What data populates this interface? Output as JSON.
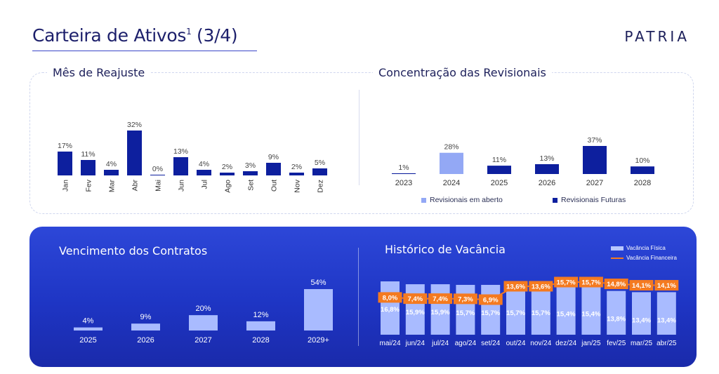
{
  "header": {
    "title": "Carteira de Ativos",
    "title_sup": "1",
    "title_suffix": " (3/4)",
    "logo": "PATRIA"
  },
  "colors": {
    "navy": "#0d1f9e",
    "light_blue": "#93a8f5",
    "orange": "#f47a20",
    "panel_blue": "#2440d0"
  },
  "chart_data": [
    {
      "id": "mes-reajuste",
      "type": "bar",
      "title": "Mês de Reajuste",
      "categories": [
        "Jan",
        "Fev",
        "Mar",
        "Abr",
        "Mai",
        "Jun",
        "Jul",
        "Ago",
        "Set",
        "Out",
        "Nov",
        "Dez"
      ],
      "values": [
        17,
        11,
        4,
        32,
        0,
        13,
        4,
        2,
        3,
        9,
        2,
        5
      ],
      "labels": [
        "17%",
        "11%",
        "4%",
        "32%",
        "0%",
        "13%",
        "4%",
        "2%",
        "3%",
        "9%",
        "2%",
        "5%"
      ]
    },
    {
      "id": "concentracao-revisionais",
      "type": "bar",
      "title": "Concentração das Revisionais",
      "categories": [
        "2023",
        "2024",
        "2025",
        "2026",
        "2027",
        "2028"
      ],
      "values": [
        1,
        28,
        11,
        13,
        37,
        10
      ],
      "labels": [
        "1%",
        "28%",
        "11%",
        "13%",
        "37%",
        "10%"
      ],
      "series_kind": [
        "futuras",
        "aberto",
        "futuras",
        "futuras",
        "futuras",
        "futuras"
      ],
      "legend": [
        "Revisionais em aberto",
        "Revisionais Futuras"
      ]
    },
    {
      "id": "vencimento-contratos",
      "type": "bar",
      "title": "Vencimento dos Contratos",
      "categories": [
        "2025",
        "2026",
        "2027",
        "2028",
        "2029+"
      ],
      "values": [
        4,
        9,
        20,
        12,
        54
      ],
      "labels": [
        "4%",
        "9%",
        "20%",
        "12%",
        "54%"
      ]
    },
    {
      "id": "historico-vacancia",
      "type": "bar",
      "title": "Histórico de Vacância",
      "categories": [
        "mai/24",
        "jun/24",
        "jul/24",
        "ago/24",
        "set/24",
        "out/24",
        "nov/24",
        "dez/24",
        "jan/25",
        "fev/25",
        "mar/25",
        "abr/25"
      ],
      "series": [
        {
          "name": "Vacância Física",
          "type": "bar",
          "values": [
            16.8,
            15.9,
            15.9,
            15.7,
            15.7,
            15.7,
            15.7,
            15.4,
            15.4,
            13.8,
            13.4,
            13.4
          ],
          "labels": [
            "16,8%",
            "15,9%",
            "15,9%",
            "15,7%",
            "15,7%",
            "15,7%",
            "15,7%",
            "15,4%",
            "15,4%",
            "13,8%",
            "13,4%",
            "13,4%"
          ]
        },
        {
          "name": "Vacância Financeira",
          "type": "line",
          "values": [
            8.0,
            7.4,
            7.4,
            7.3,
            6.9,
            13.6,
            13.6,
            15.7,
            15.7,
            14.8,
            14.1,
            14.1
          ],
          "labels": [
            "8,0%",
            "7,4%",
            "7,4%",
            "7,3%",
            "6,9%",
            "13,6%",
            "13,6%",
            "15,7%",
            "15,7%",
            "14,8%",
            "14,1%",
            "14,1%"
          ]
        }
      ]
    }
  ]
}
